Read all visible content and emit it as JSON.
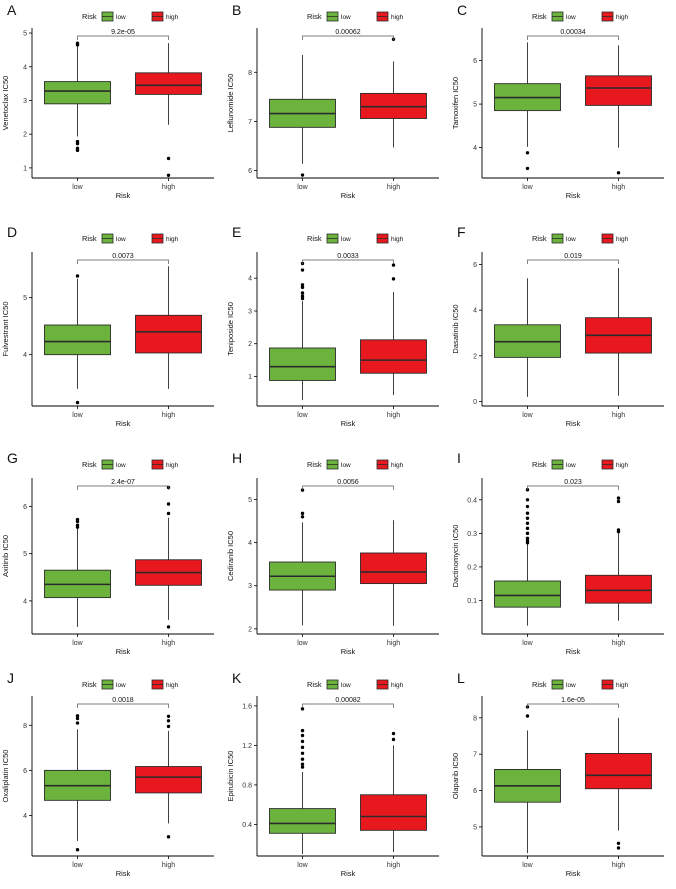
{
  "figure": {
    "legend_title": "Risk",
    "groups": [
      {
        "name": "low",
        "color": "#6bb33c"
      },
      {
        "name": "high",
        "color": "#e8191e"
      }
    ],
    "xlabel": "Risk",
    "box_border_color": "#2b2b2b"
  },
  "chart_data": [
    {
      "type": "box",
      "panel": "A",
      "title": "",
      "xlabel": "Risk",
      "ylabel": "Venetoclax IC50",
      "categories": [
        "low",
        "high"
      ],
      "ylim": [
        0.7,
        5.15
      ],
      "yticks": [
        1,
        2,
        3,
        4,
        5
      ],
      "pvalue": "9.2e-05",
      "boxes": [
        {
          "group": "low",
          "q1": 2.9,
          "median": 3.28,
          "q3": 3.56,
          "whisker_low": 1.93,
          "whisker_high": 4.6,
          "outliers": [
            4.7,
            4.65,
            1.78,
            1.72,
            1.58,
            1.52
          ]
        },
        {
          "group": "high",
          "q1": 3.18,
          "median": 3.45,
          "q3": 3.82,
          "whisker_low": 2.28,
          "whisker_high": 4.7,
          "outliers": [
            1.28,
            0.78
          ]
        }
      ]
    },
    {
      "type": "box",
      "panel": "B",
      "title": "",
      "xlabel": "Risk",
      "ylabel": "Leflunomide IC50",
      "categories": [
        "low",
        "high"
      ],
      "ylim": [
        5.85,
        8.9
      ],
      "yticks": [
        6,
        7,
        8
      ],
      "pvalue": "0.00062",
      "boxes": [
        {
          "group": "low",
          "q1": 6.88,
          "median": 7.16,
          "q3": 7.45,
          "whisker_low": 6.14,
          "whisker_high": 8.35,
          "outliers": [
            5.91
          ]
        },
        {
          "group": "high",
          "q1": 7.06,
          "median": 7.3,
          "q3": 7.57,
          "whisker_low": 6.47,
          "whisker_high": 8.22,
          "outliers": [
            8.67
          ]
        }
      ]
    },
    {
      "type": "box",
      "panel": "C",
      "title": "",
      "xlabel": "Risk",
      "ylabel": "Tamoxifen IC50",
      "categories": [
        "low",
        "high"
      ],
      "ylim": [
        3.3,
        6.75
      ],
      "yticks": [
        4,
        5,
        6
      ],
      "pvalue": "0.00034",
      "boxes": [
        {
          "group": "low",
          "q1": 4.85,
          "median": 5.15,
          "q3": 5.47,
          "whisker_low": 4.02,
          "whisker_high": 6.42,
          "outliers": [
            3.88,
            3.52
          ]
        },
        {
          "group": "high",
          "q1": 4.97,
          "median": 5.37,
          "q3": 5.65,
          "whisker_low": 4.0,
          "whisker_high": 6.35,
          "outliers": [
            3.42
          ]
        }
      ]
    },
    {
      "type": "box",
      "panel": "D",
      "title": "",
      "xlabel": "Risk",
      "ylabel": "Fulvestrant IC50",
      "categories": [
        "low",
        "high"
      ],
      "ylim": [
        3.1,
        5.8
      ],
      "yticks": [
        4,
        5
      ],
      "pvalue": "0.0073",
      "boxes": [
        {
          "group": "low",
          "q1": 4.0,
          "median": 4.23,
          "q3": 4.52,
          "whisker_low": 3.4,
          "whisker_high": 5.33,
          "outliers": [
            5.38,
            3.16
          ]
        },
        {
          "group": "high",
          "q1": 4.03,
          "median": 4.4,
          "q3": 4.69,
          "whisker_low": 3.4,
          "whisker_high": 5.55,
          "outliers": []
        }
      ]
    },
    {
      "type": "box",
      "panel": "E",
      "title": "",
      "xlabel": "Risk",
      "ylabel": "Teniposide IC50",
      "categories": [
        "low",
        "high"
      ],
      "ylim": [
        0.1,
        4.8
      ],
      "yticks": [
        1,
        2,
        3,
        4
      ],
      "pvalue": "0.0033",
      "boxes": [
        {
          "group": "low",
          "q1": 0.88,
          "median": 1.3,
          "q3": 1.87,
          "whisker_low": 0.28,
          "whisker_high": 3.3,
          "outliers": [
            4.45,
            4.25,
            3.8,
            3.72,
            3.55,
            3.45,
            3.38
          ]
        },
        {
          "group": "high",
          "q1": 1.1,
          "median": 1.5,
          "q3": 2.12,
          "whisker_low": 0.43,
          "whisker_high": 3.58,
          "outliers": [
            4.4,
            3.98
          ]
        }
      ]
    },
    {
      "type": "box",
      "panel": "F",
      "title": "",
      "xlabel": "Risk",
      "ylabel": "Dasatinib IC50",
      "categories": [
        "low",
        "high"
      ],
      "ylim": [
        -0.2,
        6.55
      ],
      "yticks": [
        0,
        2,
        4,
        6
      ],
      "pvalue": "0.019",
      "boxes": [
        {
          "group": "low",
          "q1": 1.93,
          "median": 2.62,
          "q3": 3.36,
          "whisker_low": 0.2,
          "whisker_high": 5.4,
          "outliers": []
        },
        {
          "group": "high",
          "q1": 2.12,
          "median": 2.9,
          "q3": 3.67,
          "whisker_low": 0.25,
          "whisker_high": 5.85,
          "outliers": []
        }
      ]
    },
    {
      "type": "box",
      "panel": "G",
      "title": "",
      "xlabel": "Risk",
      "ylabel": "Axitinib IC50",
      "categories": [
        "low",
        "high"
      ],
      "ylim": [
        3.3,
        6.6
      ],
      "yticks": [
        4,
        5,
        6
      ],
      "pvalue": "2.4e-07",
      "boxes": [
        {
          "group": "low",
          "q1": 4.07,
          "median": 4.35,
          "q3": 4.65,
          "whisker_low": 3.45,
          "whisker_high": 5.55,
          "outliers": [
            5.72,
            5.68,
            5.6,
            5.56
          ]
        },
        {
          "group": "high",
          "q1": 4.33,
          "median": 4.6,
          "q3": 4.87,
          "whisker_low": 3.6,
          "whisker_high": 5.76,
          "outliers": [
            6.4,
            6.05,
            5.85,
            3.45
          ]
        }
      ]
    },
    {
      "type": "box",
      "panel": "H",
      "title": "",
      "xlabel": "Risk",
      "ylabel": "Cediranib IC50",
      "categories": [
        "low",
        "high"
      ],
      "ylim": [
        1.88,
        5.5
      ],
      "yticks": [
        2,
        3,
        4,
        5
      ],
      "pvalue": "0.0056",
      "boxes": [
        {
          "group": "low",
          "q1": 2.9,
          "median": 3.22,
          "q3": 3.55,
          "whisker_low": 2.08,
          "whisker_high": 4.47,
          "outliers": [
            5.22,
            4.68,
            4.6
          ]
        },
        {
          "group": "high",
          "q1": 3.05,
          "median": 3.32,
          "q3": 3.76,
          "whisker_low": 2.07,
          "whisker_high": 4.52,
          "outliers": []
        }
      ]
    },
    {
      "type": "box",
      "panel": "I",
      "title": "",
      "xlabel": "Risk",
      "ylabel": "Dactinomycin IC50",
      "categories": [
        "low",
        "high"
      ],
      "ylim": [
        0.0,
        0.465
      ],
      "yticks": [
        0.1,
        0.2,
        0.3,
        0.4
      ],
      "pvalue": "0.023",
      "boxes": [
        {
          "group": "low",
          "q1": 0.08,
          "median": 0.115,
          "q3": 0.158,
          "whisker_low": 0.025,
          "whisker_high": 0.27,
          "outliers": [
            0.43,
            0.4,
            0.38,
            0.36,
            0.345,
            0.33,
            0.315,
            0.3,
            0.285,
            0.278,
            0.272
          ]
        },
        {
          "group": "high",
          "q1": 0.092,
          "median": 0.13,
          "q3": 0.175,
          "whisker_low": 0.04,
          "whisker_high": 0.3,
          "outliers": [
            0.405,
            0.395,
            0.31,
            0.305
          ]
        }
      ]
    },
    {
      "type": "box",
      "panel": "J",
      "title": "",
      "xlabel": "Risk",
      "ylabel": "Oxaliplatin IC50",
      "categories": [
        "low",
        "high"
      ],
      "ylim": [
        2.2,
        9.3
      ],
      "yticks": [
        4,
        6,
        8
      ],
      "pvalue": "0.0018",
      "boxes": [
        {
          "group": "low",
          "q1": 4.67,
          "median": 5.32,
          "q3": 6.0,
          "whisker_low": 2.87,
          "whisker_high": 7.82,
          "outliers": [
            8.42,
            8.3,
            8.1,
            2.48
          ]
        },
        {
          "group": "high",
          "q1": 5.0,
          "median": 5.7,
          "q3": 6.17,
          "whisker_low": 3.65,
          "whisker_high": 7.75,
          "outliers": [
            8.4,
            8.2,
            7.95,
            3.05
          ]
        }
      ]
    },
    {
      "type": "box",
      "panel": "K",
      "title": "",
      "xlabel": "Risk",
      "ylabel": "Epirubicin IC50",
      "categories": [
        "low",
        "high"
      ],
      "ylim": [
        0.08,
        1.7
      ],
      "yticks": [
        0.4,
        0.8,
        1.2,
        1.6
      ],
      "pvalue": "0.00082",
      "boxes": [
        {
          "group": "low",
          "q1": 0.31,
          "median": 0.41,
          "q3": 0.56,
          "whisker_low": 0.1,
          "whisker_high": 0.93,
          "outliers": [
            1.57,
            1.35,
            1.3,
            1.24,
            1.18,
            1.12,
            1.06,
            1.01,
            0.98
          ]
        },
        {
          "group": "high",
          "q1": 0.34,
          "median": 0.48,
          "q3": 0.7,
          "whisker_low": 0.12,
          "whisker_high": 1.2,
          "outliers": [
            1.32,
            1.26
          ]
        }
      ]
    },
    {
      "type": "box",
      "panel": "L",
      "title": "",
      "xlabel": "Risk",
      "ylabel": "Olaparib IC50",
      "categories": [
        "low",
        "high"
      ],
      "ylim": [
        4.2,
        8.6
      ],
      "yticks": [
        5,
        6,
        7,
        8
      ],
      "pvalue": "1.6e-05",
      "boxes": [
        {
          "group": "low",
          "q1": 5.68,
          "median": 6.13,
          "q3": 6.58,
          "whisker_low": 4.28,
          "whisker_high": 7.65,
          "outliers": [
            8.3,
            8.05
          ]
        },
        {
          "group": "high",
          "q1": 6.05,
          "median": 6.42,
          "q3": 7.02,
          "whisker_low": 4.9,
          "whisker_high": 8.0,
          "outliers": [
            4.55,
            4.42
          ]
        }
      ]
    }
  ]
}
